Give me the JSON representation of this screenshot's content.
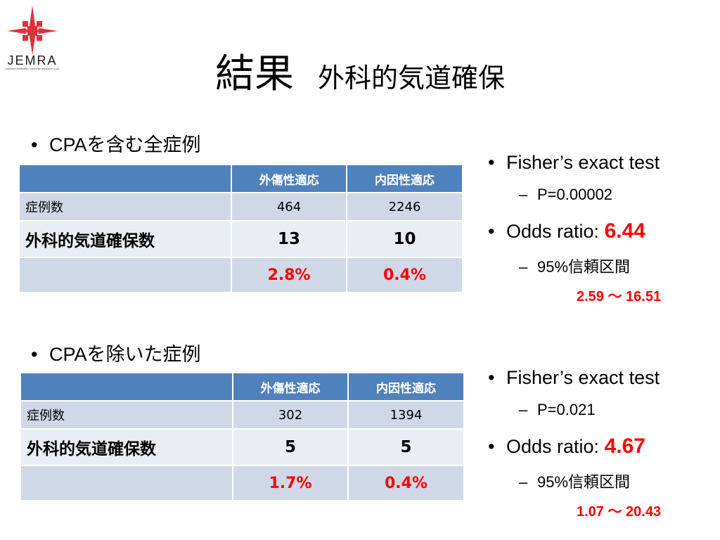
{
  "logo": {
    "text": "JEMRA",
    "subtext": "JAPANESE EMERGENCY MEDICINE RESEARCH ALLIANCE"
  },
  "title": {
    "main": "結果",
    "sub": "外科的気道確保"
  },
  "section1": {
    "heading": "CPAを含む全症例",
    "table": {
      "headers": [
        "",
        "外傷性適応",
        "内因性適応"
      ],
      "row_cases": {
        "label": "症例数",
        "trauma": "464",
        "medical": "2246"
      },
      "row_count": {
        "label": "外科的気道確保数",
        "trauma": "13",
        "medical": "10"
      },
      "row_pct": {
        "label": "",
        "trauma": "2.8%",
        "medical": "0.4%"
      }
    },
    "stats": {
      "test": "Fisher’s exact test",
      "p": "P=0.00002",
      "or_label": "Odds ratio: ",
      "or_value": "6.44",
      "ci_label": "95%信頼区間",
      "ci_value": "2.59 ～ 16.51"
    }
  },
  "section2": {
    "heading": "CPAを除いた症例",
    "table": {
      "headers": [
        "",
        "外傷性適応",
        "内因性適応"
      ],
      "row_cases": {
        "label": "症例数",
        "trauma": "302",
        "medical": "1394"
      },
      "row_count": {
        "label": "外科的気道確保数",
        "trauma": "5",
        "medical": "5"
      },
      "row_pct": {
        "label": "",
        "trauma": "1.7%",
        "medical": "0.4%"
      }
    },
    "stats": {
      "test": "Fisher’s exact test",
      "p": "P=0.021",
      "or_label": "Odds ratio: ",
      "or_value": "4.67",
      "ci_label": "95%信頼区間",
      "ci_value": "1.07 ～ 20.43"
    }
  },
  "colors": {
    "header_blue": "#4f81bd",
    "row_light": "#d0d8e8",
    "row_lighter": "#e9edf4",
    "accent_red": "#ff0000",
    "logo_red": "#e0303a"
  }
}
